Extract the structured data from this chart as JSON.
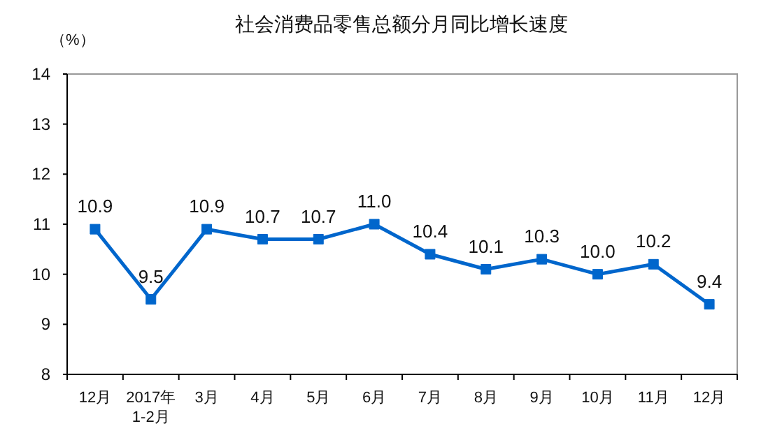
{
  "chart_data": {
    "type": "line",
    "title": "社会消费品零售总额分月同比增长速度",
    "ylabel": "（%）",
    "categories": [
      "12月",
      "2017年\n1-2月",
      "3月",
      "4月",
      "5月",
      "6月",
      "7月",
      "8月",
      "9月",
      "10月",
      "11月",
      "12月"
    ],
    "series": [
      {
        "color": "#0066cc",
        "values": [
          10.9,
          9.5,
          10.9,
          10.7,
          10.7,
          11.0,
          10.4,
          10.1,
          10.3,
          10.0,
          10.2,
          9.4
        ],
        "value_labels": [
          "10.9",
          "9.5",
          "10.9",
          "10.7",
          "10.7",
          "11.0",
          "10.4",
          "10.1",
          "10.3",
          "10.0",
          "10.2",
          "9.4"
        ]
      }
    ],
    "ylim": [
      8,
      14
    ],
    "yticks": [
      8,
      9,
      10,
      11,
      12,
      13,
      14
    ],
    "grid": false,
    "legend": false,
    "marker": "square",
    "line_style": "solid"
  }
}
